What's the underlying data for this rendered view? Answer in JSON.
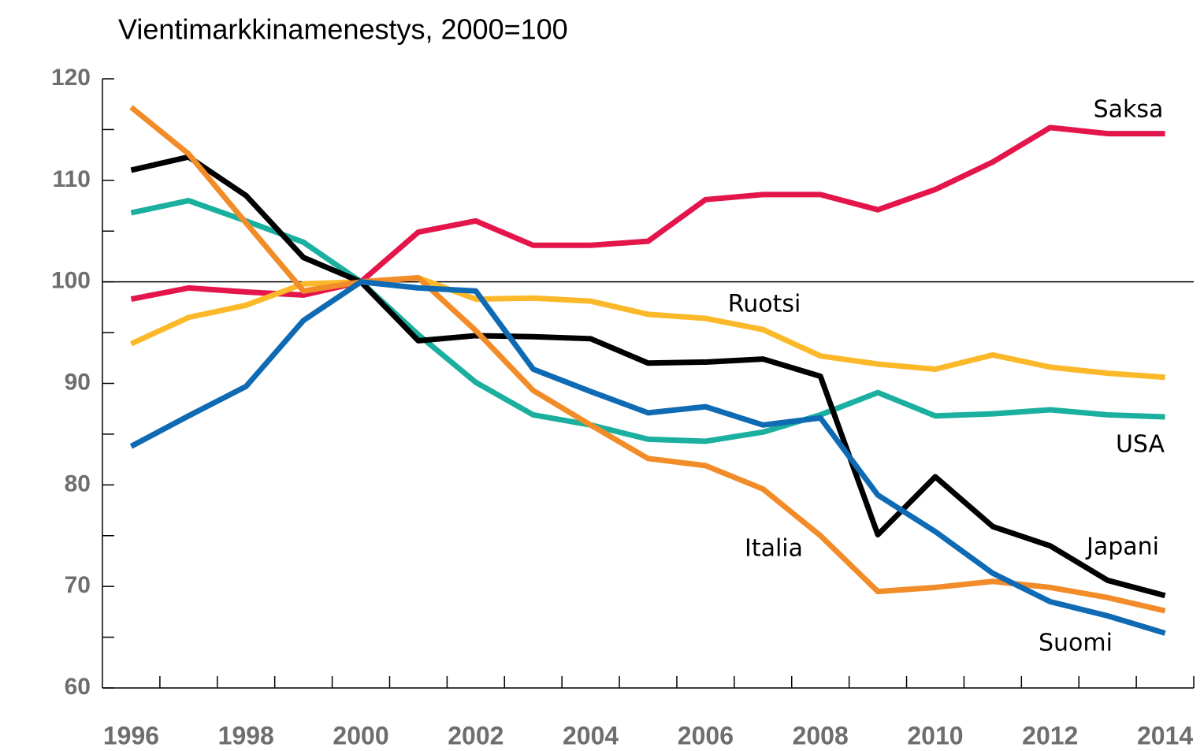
{
  "chart_data": {
    "type": "line",
    "title": "Vientimarkkinamenestys, 2000=100",
    "categories": [
      "1996",
      null,
      "1998",
      null,
      "2000",
      null,
      "2002",
      null,
      "2004",
      null,
      "2006",
      null,
      "2008",
      null,
      "2010",
      null,
      "2012",
      null,
      "2014"
    ],
    "series": [
      {
        "name": "Saksa",
        "color": "#e4154b",
        "values": [
          98.3,
          99.4,
          99.0,
          98.7,
          100,
          104.9,
          106.0,
          103.6,
          103.6,
          104.0,
          108.1,
          108.6,
          108.6,
          107.1,
          109.1,
          111.8,
          115.2,
          114.6,
          114.6
        ]
      },
      {
        "name": "Ruotsi",
        "color": "#fbb829",
        "values": [
          93.9,
          96.5,
          97.7,
          99.8,
          100,
          100.4,
          98.3,
          98.4,
          98.1,
          96.8,
          96.4,
          95.3,
          92.7,
          91.9,
          91.4,
          92.8,
          91.6,
          91.0,
          90.6
        ]
      },
      {
        "name": "USA",
        "color": "#1aaf9e",
        "values": [
          106.8,
          108.0,
          106.0,
          103.9,
          100,
          94.8,
          90.1,
          86.9,
          85.9,
          84.5,
          84.3,
          85.2,
          86.9,
          89.1,
          86.8,
          87.0,
          87.4,
          86.9,
          86.7
        ]
      },
      {
        "name": "Japani",
        "color": "#000000",
        "values": [
          111.0,
          112.3,
          108.5,
          102.4,
          100,
          94.2,
          94.7,
          94.6,
          94.4,
          92.0,
          92.1,
          92.4,
          90.7,
          75.1,
          80.8,
          75.9,
          74.0,
          70.6,
          69.1
        ]
      },
      {
        "name": "Italia",
        "color": "#f28c28",
        "values": [
          117.2,
          112.6,
          105.8,
          99.1,
          100,
          100.4,
          95.2,
          89.3,
          85.9,
          82.6,
          81.9,
          79.6,
          75.0,
          69.5,
          69.9,
          70.5,
          69.9,
          68.9,
          67.6
        ]
      },
      {
        "name": "Suomi",
        "color": "#0f6ab4",
        "values": [
          83.8,
          86.8,
          89.7,
          96.2,
          100,
          99.4,
          99.1,
          91.4,
          89.2,
          87.1,
          87.7,
          85.9,
          86.6,
          79.0,
          75.4,
          71.3,
          68.5,
          67.1,
          65.4
        ]
      }
    ],
    "ylim": [
      60,
      120
    ],
    "yticks": [
      60,
      70,
      80,
      90,
      100,
      110,
      120
    ],
    "yminorticks": [
      65,
      75,
      85,
      95,
      105,
      115
    ],
    "reference_line": 100
  }
}
